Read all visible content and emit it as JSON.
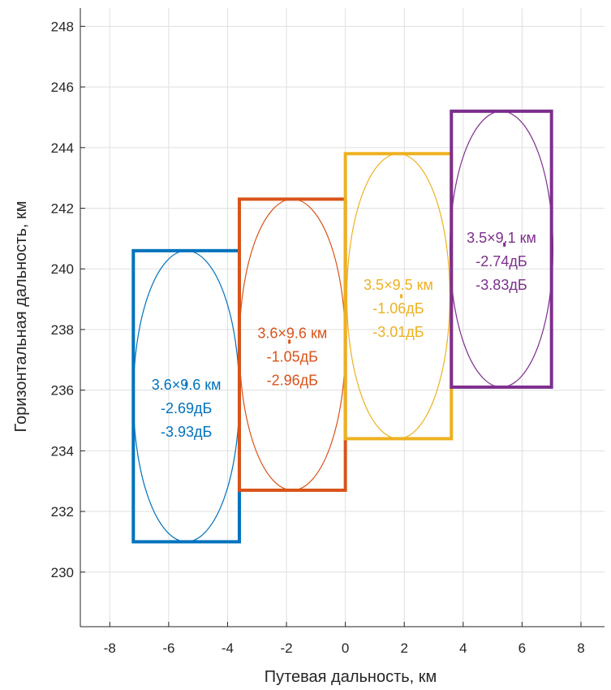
{
  "chart_data": {
    "type": "scatter",
    "xlabel": "Путевая дальность, км",
    "ylabel": "Горизонтальная дальность, км",
    "xlim": [
      -9,
      8.8
    ],
    "ylim": [
      228.2,
      248.6
    ],
    "xticks": [
      -8,
      -6,
      -4,
      -2,
      0,
      2,
      4,
      6,
      8
    ],
    "yticks": [
      230,
      232,
      234,
      236,
      238,
      240,
      242,
      244,
      246,
      248
    ],
    "grid": true,
    "series": [
      {
        "color": "#0072BD",
        "center": [
          -5.4,
          236.2
        ],
        "rect": {
          "x": [
            -7.2,
            -3.6
          ],
          "y": [
            231.0,
            240.6
          ]
        },
        "ellipse": {
          "cx": -5.4,
          "cy": 235.8,
          "rx": 1.8,
          "ry": 4.8
        },
        "labels": [
          "3.6×9.6 км",
          "-2.69дБ",
          "-3.93дБ"
        ]
      },
      {
        "color": "#D95319",
        "center": [
          -1.9,
          237.6
        ],
        "rect": {
          "x": [
            -3.6,
            0.0
          ],
          "y": [
            232.7,
            242.3
          ]
        },
        "ellipse": {
          "cx": -1.8,
          "cy": 237.5,
          "rx": 1.8,
          "ry": 4.8
        },
        "labels": [
          "3.6×9.6 км",
          "-1.05дБ",
          "-2.96дБ"
        ]
      },
      {
        "color": "#EDB120",
        "center": [
          1.9,
          239.1
        ],
        "rect": {
          "x": [
            0.0,
            3.6
          ],
          "y": [
            234.4,
            243.8
          ]
        },
        "ellipse": {
          "cx": 1.8,
          "cy": 239.1,
          "rx": 1.75,
          "ry": 4.7
        },
        "labels": [
          "3.5×9.5 км",
          "-1.06дБ",
          "-3.01дБ"
        ]
      },
      {
        "color": "#7E2F8E",
        "center": [
          5.4,
          240.8
        ],
        "rect": {
          "x": [
            3.6,
            7.0
          ],
          "y": [
            236.1,
            245.2
          ]
        },
        "ellipse": {
          "cx": 5.3,
          "cy": 240.65,
          "rx": 1.75,
          "ry": 4.55
        },
        "labels": [
          "3.5×9.1 км",
          "-2.74дБ",
          "-3.83дБ"
        ]
      }
    ]
  }
}
